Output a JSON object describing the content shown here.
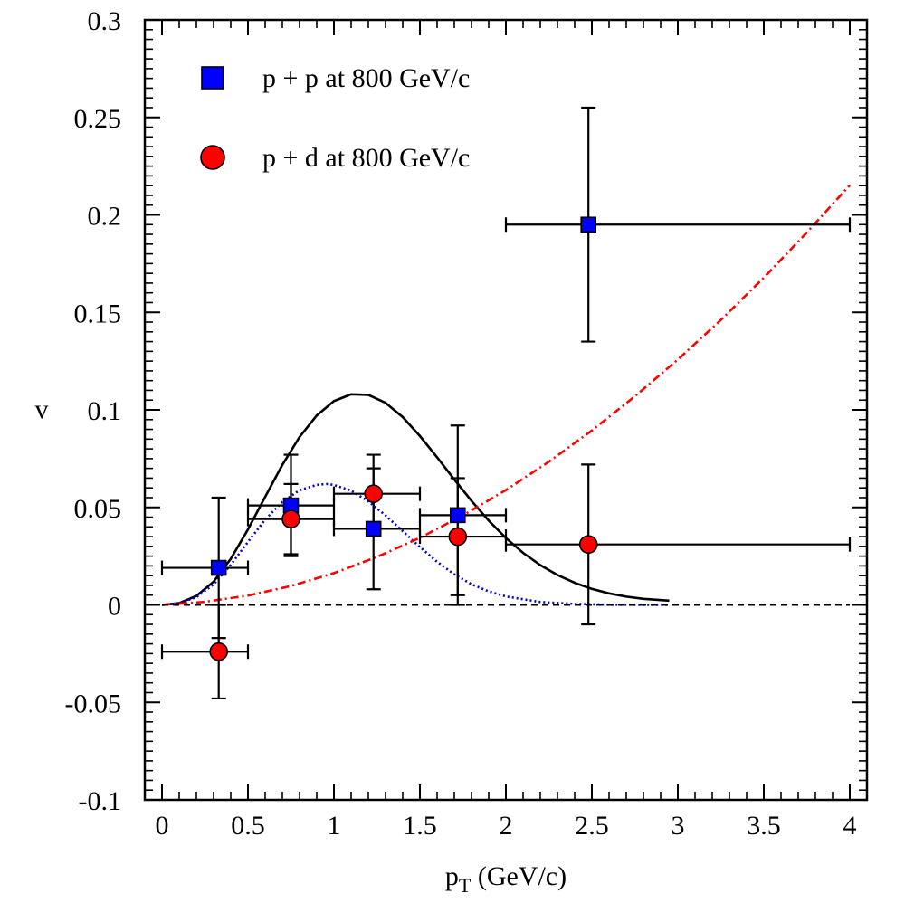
{
  "chart_data": {
    "type": "scatter",
    "title": "",
    "xlabel": {
      "main": "p",
      "sub": "T",
      "rest": " (GeV/c)"
    },
    "ylabel": "v",
    "xlim": [
      -0.1,
      4.1
    ],
    "ylim": [
      -0.1,
      0.3
    ],
    "xticks": [
      0,
      0.5,
      1,
      1.5,
      2,
      2.5,
      3,
      3.5,
      4
    ],
    "xtick_labels": [
      "0",
      "0.5",
      "1",
      "1.5",
      "2",
      "2.5",
      "3",
      "3.5",
      "4"
    ],
    "yticks": [
      -0.1,
      -0.05,
      0,
      0.05,
      0.1,
      0.15,
      0.2,
      0.25,
      0.3
    ],
    "ytick_labels": [
      "-0.1",
      "-0.05",
      "0",
      "0.05",
      "0.1",
      "0.15",
      "0.2",
      "0.25",
      "0.3"
    ],
    "grid": false,
    "legend_position": "top-left",
    "series": [
      {
        "name": "p + p at 800 GeV/c",
        "marker": "square",
        "color": "#0000ff",
        "points": [
          {
            "x": 0.33,
            "y": 0.019,
            "xerr": [
              0.0,
              0.5
            ],
            "yerr": 0.036
          },
          {
            "x": 0.75,
            "y": 0.051,
            "xerr": [
              0.5,
              1.0
            ],
            "yerr": 0.026
          },
          {
            "x": 1.23,
            "y": 0.039,
            "xerr": [
              1.0,
              1.5
            ],
            "yerr": 0.031
          },
          {
            "x": 1.72,
            "y": 0.046,
            "xerr": [
              1.5,
              2.0
            ],
            "yerr": 0.046
          },
          {
            "x": 2.48,
            "y": 0.195,
            "xerr": [
              2.0,
              4.0
            ],
            "yerr": 0.06
          }
        ]
      },
      {
        "name": "p + d at 800 GeV/c",
        "marker": "circle",
        "color": "#ff0000",
        "points": [
          {
            "x": 0.33,
            "y": -0.024,
            "xerr": [
              0.0,
              0.5
            ],
            "yerr": 0.024
          },
          {
            "x": 0.75,
            "y": 0.044,
            "xerr": [
              0.5,
              1.0
            ],
            "yerr": 0.018
          },
          {
            "x": 1.23,
            "y": 0.057,
            "xerr": [
              1.0,
              1.5
            ],
            "yerr": 0.02
          },
          {
            "x": 1.72,
            "y": 0.035,
            "xerr": [
              1.5,
              2.0
            ],
            "yerr": 0.03
          },
          {
            "x": 2.48,
            "y": 0.031,
            "xerr": [
              2.0,
              4.0
            ],
            "yerr": 0.041
          }
        ]
      }
    ],
    "curves": [
      {
        "style": "solid",
        "color": "#000000",
        "points": [
          [
            0.0,
            0
          ],
          [
            0.1,
            0.0009
          ],
          [
            0.2,
            0.0046
          ],
          [
            0.3,
            0.0119
          ],
          [
            0.4,
            0.0236
          ],
          [
            0.5,
            0.0387
          ],
          [
            0.6,
            0.0554
          ],
          [
            0.7,
            0.0718
          ],
          [
            0.8,
            0.0861
          ],
          [
            0.9,
            0.0971
          ],
          [
            1.0,
            0.1045
          ],
          [
            1.1,
            0.108
          ],
          [
            1.2,
            0.1077
          ],
          [
            1.3,
            0.1036
          ],
          [
            1.4,
            0.0963
          ],
          [
            1.5,
            0.0866
          ],
          [
            1.6,
            0.0757
          ],
          [
            1.7,
            0.0643
          ],
          [
            1.8,
            0.0533
          ],
          [
            1.9,
            0.0432
          ],
          [
            2.0,
            0.0343
          ],
          [
            2.1,
            0.0267
          ],
          [
            2.2,
            0.0204
          ],
          [
            2.3,
            0.0153
          ],
          [
            2.4,
            0.0113
          ],
          [
            2.5,
            0.0082
          ],
          [
            2.6,
            0.0059
          ],
          [
            2.7,
            0.0042
          ],
          [
            2.8,
            0.0031
          ],
          [
            2.95,
            0.0022
          ]
        ]
      },
      {
        "style": "dotted",
        "color": "#0000cc",
        "points": [
          [
            0.0,
            0
          ],
          [
            0.1,
            0.0008
          ],
          [
            0.2,
            0.004
          ],
          [
            0.3,
            0.0105
          ],
          [
            0.4,
            0.0205
          ],
          [
            0.5,
            0.0323
          ],
          [
            0.6,
            0.0437
          ],
          [
            0.7,
            0.0528
          ],
          [
            0.8,
            0.0588
          ],
          [
            0.9,
            0.0616
          ],
          [
            0.96,
            0.062
          ],
          [
            1.0,
            0.0615
          ],
          [
            1.1,
            0.0586
          ],
          [
            1.2,
            0.0531
          ],
          [
            1.3,
            0.0459
          ],
          [
            1.4,
            0.0378
          ],
          [
            1.5,
            0.0297
          ],
          [
            1.6,
            0.0221
          ],
          [
            1.7,
            0.0157
          ],
          [
            1.8,
            0.0106
          ],
          [
            1.9,
            0.0069
          ],
          [
            2.0,
            0.0043
          ],
          [
            2.2,
            0.0015
          ],
          [
            2.4,
            0.0005
          ],
          [
            2.6,
            0.0001
          ],
          [
            2.95,
            0.0
          ]
        ]
      },
      {
        "style": "dash-dot",
        "color": "#ff0000",
        "points": [
          [
            0.0,
            0
          ],
          [
            0.25,
            0.0016
          ],
          [
            0.5,
            0.0048
          ],
          [
            0.75,
            0.0097
          ],
          [
            1.0,
            0.0163
          ],
          [
            1.25,
            0.0246
          ],
          [
            1.5,
            0.0344
          ],
          [
            1.75,
            0.0459
          ],
          [
            2.0,
            0.0589
          ],
          [
            2.25,
            0.0734
          ],
          [
            2.5,
            0.0894
          ],
          [
            2.75,
            0.1069
          ],
          [
            3.0,
            0.1258
          ],
          [
            3.25,
            0.1461
          ],
          [
            3.5,
            0.1678
          ],
          [
            3.75,
            0.1909
          ],
          [
            4.0,
            0.2152
          ]
        ]
      },
      {
        "style": "dashed",
        "color": "#000000",
        "points": [
          [
            0.0,
            0
          ],
          [
            4.0,
            0
          ]
        ]
      }
    ]
  }
}
